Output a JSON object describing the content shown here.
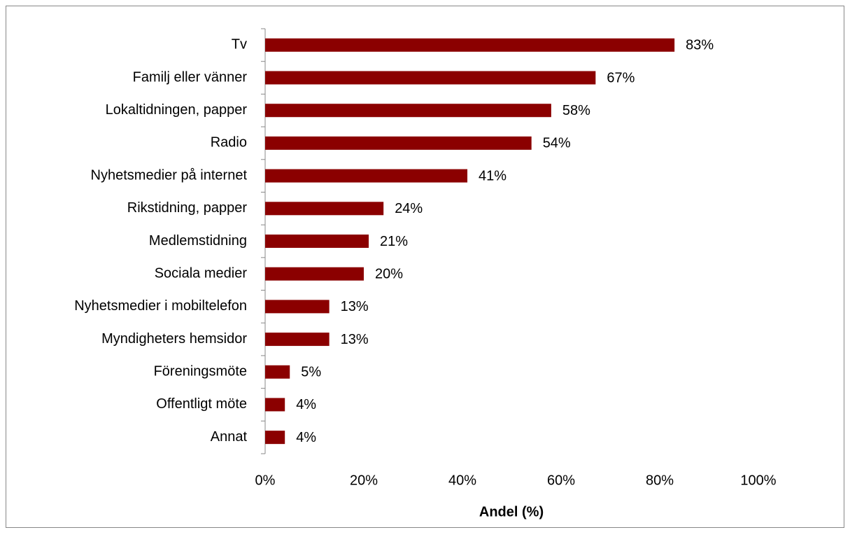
{
  "chart_data": {
    "type": "bar",
    "orientation": "horizontal",
    "categories": [
      "Tv",
      "Familj eller vänner",
      "Lokaltidningen, papper",
      "Radio",
      "Nyhetsmedier på internet",
      "Rikstidning, papper",
      "Medlemstidning",
      "Sociala medier",
      "Nyhetsmedier i mobiltelefon",
      "Myndigheters hemsidor",
      "Föreningsmöte",
      "Offentligt möte",
      "Annat"
    ],
    "values": [
      83,
      67,
      58,
      54,
      41,
      24,
      21,
      20,
      13,
      13,
      5,
      4,
      4
    ],
    "value_labels": [
      "83%",
      "67%",
      "58%",
      "54%",
      "41%",
      "24%",
      "21%",
      "20%",
      "13%",
      "13%",
      "5%",
      "4%",
      "4%"
    ],
    "color": "#8b0000",
    "xlabel": "Andel (%)",
    "xlim": [
      0,
      100
    ],
    "xticks": [
      {
        "value": 0,
        "label": "0%"
      },
      {
        "value": 20,
        "label": "20%"
      },
      {
        "value": 40,
        "label": "40%"
      },
      {
        "value": 60,
        "label": "60%"
      },
      {
        "value": 80,
        "label": "80%"
      },
      {
        "value": 100,
        "label": "100%"
      }
    ],
    "grid": false
  }
}
